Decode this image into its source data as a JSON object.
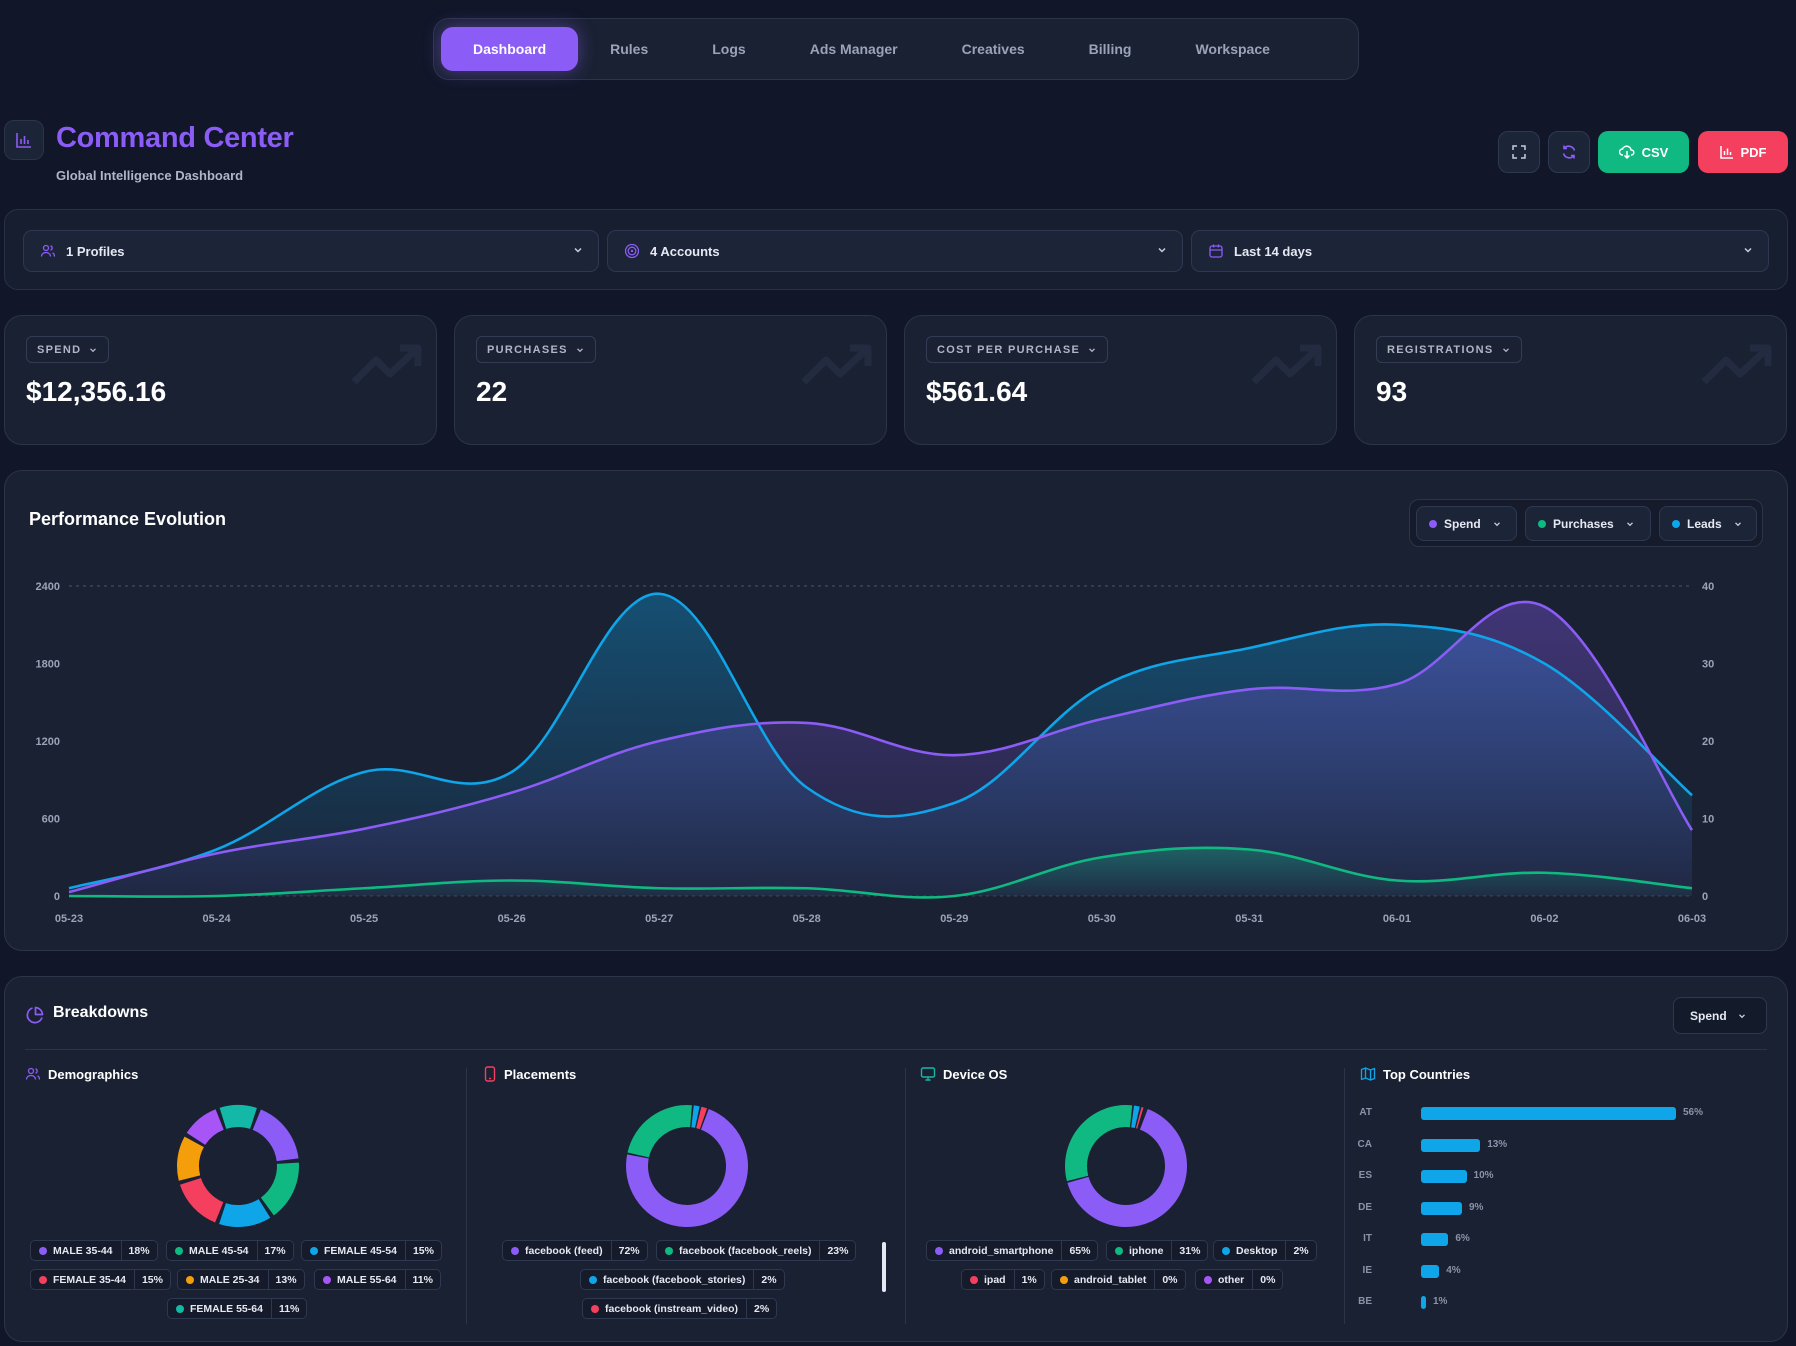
{
  "nav": {
    "tabs": [
      "Dashboard",
      "Rules",
      "Logs",
      "Ads Manager",
      "Creatives",
      "Billing",
      "Workspace"
    ],
    "active": 0
  },
  "header": {
    "title": "Command Center",
    "subtitle": "Global Intelligence Dashboard",
    "csv_label": "CSV",
    "pdf_label": "PDF"
  },
  "filters": {
    "profiles": "1 Profiles",
    "accounts": "4 Accounts",
    "range": "Last 14 days"
  },
  "kpis": [
    {
      "label": "SPEND",
      "value": "$12,356.16"
    },
    {
      "label": "PURCHASES",
      "value": "22"
    },
    {
      "label": "COST PER PURCHASE",
      "value": "$561.64"
    },
    {
      "label": "REGISTRATIONS",
      "value": "93"
    }
  ],
  "performance": {
    "title": "Performance Evolution",
    "legend": [
      "Spend",
      "Purchases",
      "Leads"
    ]
  },
  "chart_data": {
    "type": "area",
    "title": "Performance Evolution",
    "x": [
      "05-23",
      "05-24",
      "05-25",
      "05-26",
      "05-27",
      "05-28",
      "05-29",
      "05-30",
      "05-31",
      "06-01",
      "06-02",
      "06-03"
    ],
    "y_left_ticks": [
      "2400",
      "1800",
      "1200",
      "600",
      "0"
    ],
    "y_right_ticks": [
      "40",
      "30",
      "20",
      "10",
      "0"
    ],
    "ylim_left": [
      0,
      2400
    ],
    "ylim_right": [
      0,
      40
    ],
    "grid": "top-dashed-line",
    "series": [
      {
        "name": "Spend",
        "axis": "left",
        "color": "#8b5cf6",
        "values": [
          30,
          330,
          520,
          800,
          1200,
          1340,
          1090,
          1370,
          1600,
          1640,
          2240,
          510
        ]
      },
      {
        "name": "Purchases",
        "axis": "right",
        "color": "#10b981",
        "values": [
          0,
          0,
          1,
          2,
          1,
          1,
          0,
          5,
          6,
          2,
          3,
          1
        ]
      },
      {
        "name": "Leads",
        "axis": "right",
        "color": "#0ea5e9",
        "values": [
          1,
          6,
          16,
          16,
          39,
          14,
          12,
          27,
          32,
          35,
          30,
          13
        ]
      }
    ]
  },
  "breakdowns": {
    "title": "Breakdowns",
    "metric": "Spend",
    "demographics": {
      "title": "Demographics",
      "items": [
        {
          "label": "MALE 35-44",
          "pct": "18%",
          "value": 18,
          "color": "#8b5cf6"
        },
        {
          "label": "MALE 45-54",
          "pct": "17%",
          "value": 17,
          "color": "#10b981"
        },
        {
          "label": "FEMALE 45-54",
          "pct": "15%",
          "value": 15,
          "color": "#0ea5e9"
        },
        {
          "label": "FEMALE 35-44",
          "pct": "15%",
          "value": 15,
          "color": "#f43f5e"
        },
        {
          "label": "MALE 25-34",
          "pct": "13%",
          "value": 13,
          "color": "#f59e0b"
        },
        {
          "label": "MALE 55-64",
          "pct": "11%",
          "value": 11,
          "color": "#a855f7"
        },
        {
          "label": "FEMALE 55-64",
          "pct": "11%",
          "value": 11,
          "color": "#14b8a6"
        }
      ]
    },
    "placements": {
      "title": "Placements",
      "items": [
        {
          "label": "facebook (feed)",
          "pct": "72%",
          "value": 72,
          "color": "#8b5cf6"
        },
        {
          "label": "facebook (facebook_reels)",
          "pct": "23%",
          "value": 23,
          "color": "#10b981"
        },
        {
          "label": "facebook (facebook_stories)",
          "pct": "2%",
          "value": 2,
          "color": "#0ea5e9"
        },
        {
          "label": "facebook (instream_video)",
          "pct": "2%",
          "value": 2,
          "color": "#f43f5e"
        }
      ]
    },
    "device": {
      "title": "Device OS",
      "items": [
        {
          "label": "android_smartphone",
          "pct": "65%",
          "value": 65,
          "color": "#8b5cf6"
        },
        {
          "label": "iphone",
          "pct": "31%",
          "value": 31,
          "color": "#10b981"
        },
        {
          "label": "Desktop",
          "pct": "2%",
          "value": 2,
          "color": "#0ea5e9"
        },
        {
          "label": "ipad",
          "pct": "1%",
          "value": 1,
          "color": "#f43f5e"
        },
        {
          "label": "android_tablet",
          "pct": "0%",
          "value": 0.4,
          "color": "#f59e0b"
        },
        {
          "label": "other",
          "pct": "0%",
          "value": 0.3,
          "color": "#a855f7"
        }
      ]
    },
    "countries": {
      "title": "Top Countries",
      "items": [
        {
          "code": "AT",
          "pct": "56%",
          "value": 56
        },
        {
          "code": "CA",
          "pct": "13%",
          "value": 13
        },
        {
          "code": "ES",
          "pct": "10%",
          "value": 10
        },
        {
          "code": "DE",
          "pct": "9%",
          "value": 9
        },
        {
          "code": "IT",
          "pct": "6%",
          "value": 6
        },
        {
          "code": "IE",
          "pct": "4%",
          "value": 4
        },
        {
          "code": "BE",
          "pct": "1%",
          "value": 1
        }
      ]
    }
  }
}
